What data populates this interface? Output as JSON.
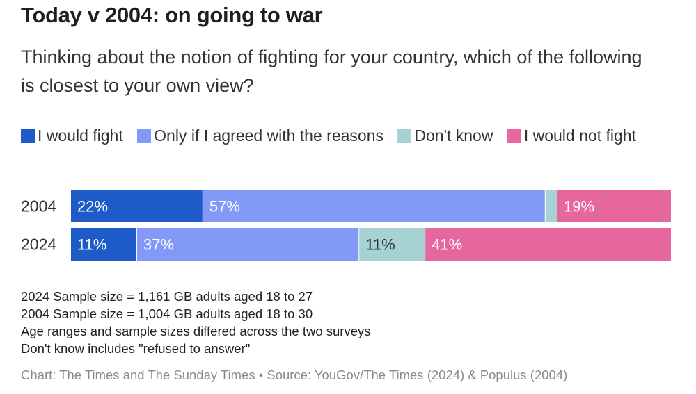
{
  "title": "Today v 2004: on going to war",
  "subtitle": "Thinking about the notion of fighting for your country, which of the following is closest to your own view?",
  "chart_data": {
    "type": "bar",
    "orientation": "horizontal",
    "stacked": true,
    "normalized": true,
    "categories": [
      "2004",
      "2024"
    ],
    "series": [
      {
        "name": "I would fight",
        "color": "#1f5ac9",
        "label_color": "#ffffff",
        "values": [
          22,
          11
        ],
        "labels": [
          "22%",
          "11%"
        ]
      },
      {
        "name": "Only if I agreed with the reasons",
        "color": "#8399f7",
        "label_color": "#ffffff",
        "values": [
          57,
          37
        ],
        "labels": [
          "57%",
          "37%"
        ]
      },
      {
        "name": "Don't know",
        "color": "#a6d2d4",
        "label_color": "#333333",
        "values": [
          2,
          11
        ],
        "labels": [
          "",
          "11%"
        ]
      },
      {
        "name": "I would not fight",
        "color": "#e6669e",
        "label_color": "#ffffff",
        "values": [
          19,
          41
        ],
        "labels": [
          "19%",
          "41%"
        ]
      }
    ],
    "xlim": [
      0,
      100
    ],
    "legend_position": "top"
  },
  "notes": [
    "2024 Sample size = 1,161 GB adults aged 18 to 27",
    "2004 Sample size = 1,004 GB adults aged 18 to 30",
    "Age ranges and sample sizes differed across the two surveys",
    "Don't know includes \"refused to answer\""
  ],
  "source": "Chart: The Times and The Sunday Times • Source: YouGov/The Times (2024) & Populus (2004)"
}
